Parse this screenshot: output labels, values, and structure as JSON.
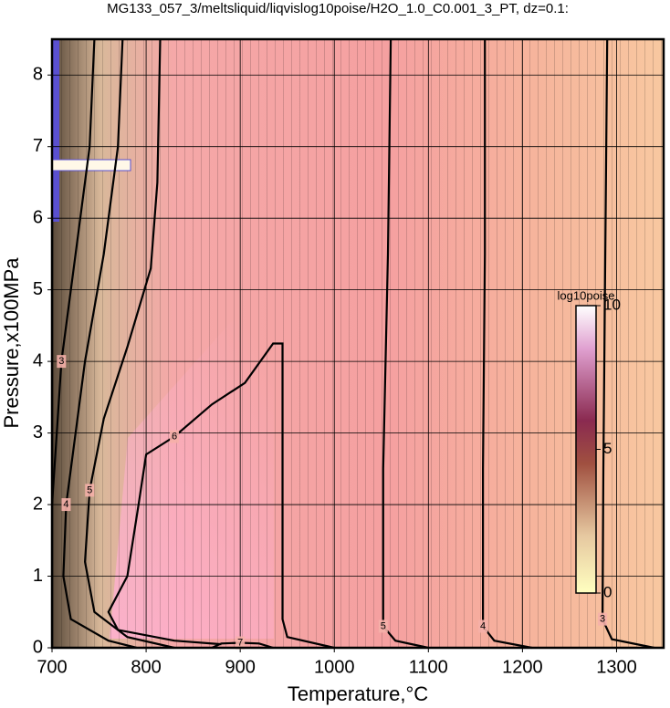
{
  "chart_data": {
    "type": "contour",
    "title": "MG133_057_3/meltsliquid/liqvislog10poise/H2O_1.0_C0.001_3_PT, dz=0.1:",
    "x_label": "Temperature,°C",
    "y_label": "Pressure,x100MPa",
    "xlim": [
      700,
      1350
    ],
    "ylim": [
      0,
      8.5
    ],
    "xticks": [
      700,
      800,
      900,
      1000,
      1100,
      1200,
      1300
    ],
    "yticks": [
      0,
      1,
      2,
      3,
      4,
      5,
      6,
      7,
      8
    ],
    "grid": true,
    "series": [
      {
        "name": "3",
        "color": "#000000",
        "x": [
          1290,
          1288,
          1286,
          1285,
          1295,
          1340
        ],
        "y": [
          8.5,
          5.5,
          2.5,
          0.4,
          0.12,
          0
        ]
      },
      {
        "name": "4",
        "color": "#000000",
        "x": [
          1160,
          1160,
          1158,
          1158,
          1170,
          1210
        ],
        "y": [
          8.5,
          5.5,
          2.5,
          0.3,
          0.1,
          0
        ]
      },
      {
        "name": "5",
        "color": "#000000",
        "x": [
          1060,
          1057,
          1052,
          1052,
          1065,
          1100
        ],
        "y": [
          8.5,
          5.5,
          2.5,
          0.3,
          0.1,
          0
        ]
      },
      {
        "name": "6",
        "color": "#000000",
        "x": [
          1000,
          950,
          945,
          945,
          945,
          935,
          905,
          870,
          830,
          800,
          792,
          780,
          760,
          770,
          830,
          880
        ],
        "y": [
          0,
          0.15,
          0.4,
          2.8,
          4.25,
          4.25,
          3.7,
          3.4,
          2.95,
          2.7,
          2.0,
          1.0,
          0.5,
          0.25,
          0.1,
          0.05
        ]
      },
      {
        "name": "7",
        "color": "#000000",
        "x": [
          870,
          880,
          900,
          920,
          935
        ],
        "y": [
          0,
          0.06,
          0.07,
          0.06,
          0
        ]
      },
      {
        "name": "5",
        "color": "#000000",
        "x": [
          815,
          812,
          805,
          780,
          755,
          740,
          735,
          745,
          780,
          830
        ],
        "y": [
          8.5,
          6.5,
          5.3,
          4.2,
          3.2,
          2.2,
          1.2,
          0.5,
          0.15,
          0
        ]
      },
      {
        "name": "4",
        "color": "#000000",
        "x": [
          775,
          770,
          755,
          735,
          725,
          715,
          712,
          720,
          760,
          790
        ],
        "y": [
          8.5,
          7,
          5.5,
          4,
          3,
          2,
          1,
          0.4,
          0.1,
          0
        ]
      },
      {
        "name": "3",
        "color": "#000000",
        "x": [
          745,
          740,
          725,
          710,
          705,
          700
        ],
        "y": [
          8.5,
          7,
          5.5,
          4,
          3,
          2
        ]
      }
    ],
    "colorbar": {
      "label": "log10poise",
      "lim": [
        0,
        10
      ],
      "ticks": [
        0,
        5,
        10
      ]
    }
  }
}
